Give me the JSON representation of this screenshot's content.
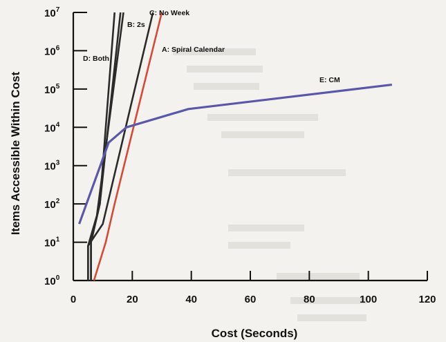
{
  "chart_data": {
    "type": "line",
    "title": "",
    "xlabel": "Cost (Seconds)",
    "ylabel": "Items Accessible Within Cost",
    "xlim": [
      0,
      120
    ],
    "ylim_log10": [
      0,
      7
    ],
    "y_scale": "log",
    "grid": false,
    "x_ticks": [
      "0",
      "20",
      "40",
      "60",
      "80",
      "100",
      "120"
    ],
    "y_ticks": [
      {
        "base": "10",
        "exp": "0"
      },
      {
        "base": "10",
        "exp": "1"
      },
      {
        "base": "10",
        "exp": "2"
      },
      {
        "base": "10",
        "exp": "3"
      },
      {
        "base": "10",
        "exp": "4"
      },
      {
        "base": "10",
        "exp": "5"
      },
      {
        "base": "10",
        "exp": "6"
      },
      {
        "base": "10",
        "exp": "7"
      }
    ],
    "series": [
      {
        "name": "A: Spiral Calendar",
        "color": "#d64a35",
        "points": [
          [
            7,
            1
          ],
          [
            11,
            10
          ],
          [
            14,
            100
          ],
          [
            30,
            10000000
          ]
        ]
      },
      {
        "name": "B: 2s",
        "color": "#2a2a2a",
        "points": [
          [
            5,
            1
          ],
          [
            5,
            8
          ],
          [
            8,
            50
          ],
          [
            17,
            10000000
          ]
        ],
        "points2": [
          [
            6,
            1
          ],
          [
            6,
            10
          ],
          [
            9,
            100
          ],
          [
            16,
            10000000
          ]
        ]
      },
      {
        "name": "C: No Week",
        "color": "#2a2a2a",
        "points": [
          [
            5,
            1
          ],
          [
            5,
            8
          ],
          [
            10,
            30
          ],
          [
            27,
            10000000
          ]
        ]
      },
      {
        "name": "D: Both",
        "color": "#2a2a2a",
        "points": [
          [
            6,
            1
          ],
          [
            6,
            10
          ],
          [
            9,
            100
          ],
          [
            14,
            10000000
          ]
        ]
      },
      {
        "name": "E: CM",
        "color": "#5a57a8",
        "points": [
          [
            2,
            30
          ],
          [
            12,
            4000
          ],
          [
            18,
            10000
          ],
          [
            39,
            30000
          ],
          [
            108,
            130000
          ]
        ]
      }
    ]
  }
}
